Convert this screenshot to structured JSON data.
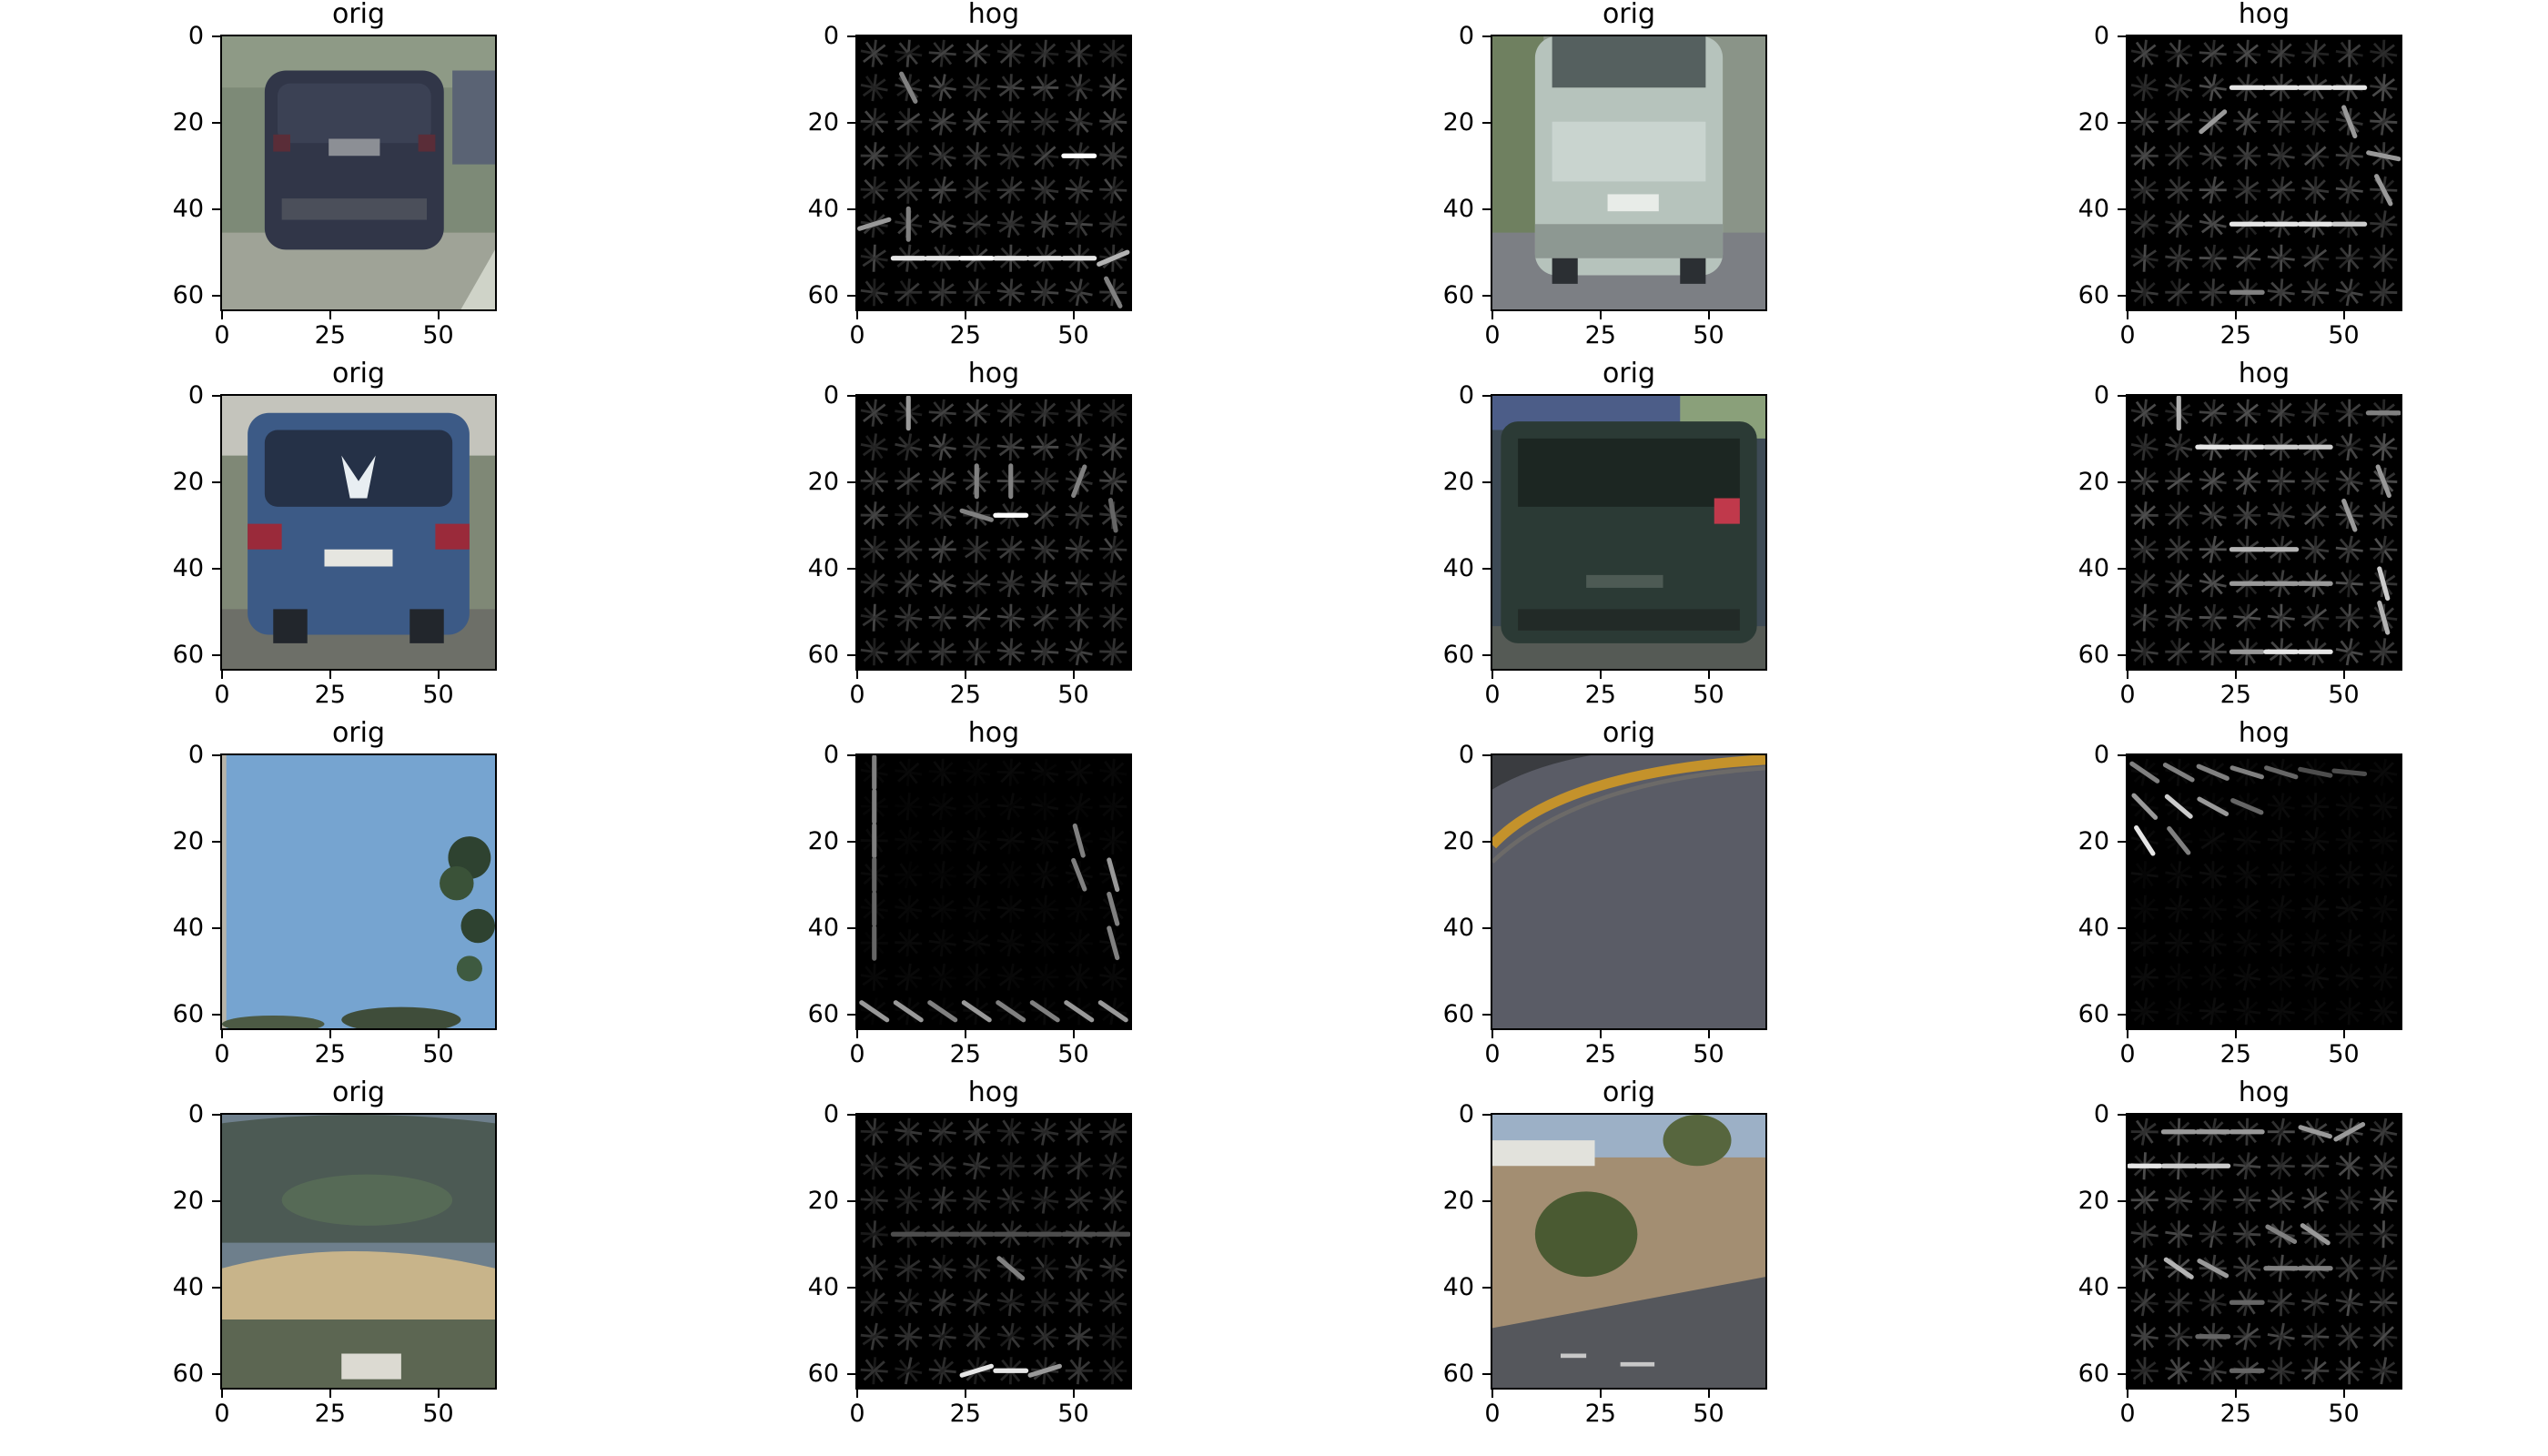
{
  "figure": {
    "panels": [
      {
        "title": "orig",
        "kind": "orig",
        "scene": "car-dark",
        "row": 0,
        "col": 0
      },
      {
        "title": "hog",
        "kind": "hog",
        "scene": "hog-car-1",
        "row": 0,
        "col": 1
      },
      {
        "title": "orig",
        "kind": "orig",
        "scene": "car-silver",
        "row": 0,
        "col": 2
      },
      {
        "title": "hog",
        "kind": "hog",
        "scene": "hog-car-2",
        "row": 0,
        "col": 3
      },
      {
        "title": "orig",
        "kind": "orig",
        "scene": "car-blue",
        "row": 1,
        "col": 0
      },
      {
        "title": "hog",
        "kind": "hog",
        "scene": "hog-car-3",
        "row": 1,
        "col": 1
      },
      {
        "title": "orig",
        "kind": "orig",
        "scene": "car-green",
        "row": 1,
        "col": 2
      },
      {
        "title": "hog",
        "kind": "hog",
        "scene": "hog-car-4",
        "row": 1,
        "col": 3
      },
      {
        "title": "orig",
        "kind": "orig",
        "scene": "sky-trees",
        "row": 2,
        "col": 0
      },
      {
        "title": "hog",
        "kind": "hog",
        "scene": "hog-sky",
        "row": 2,
        "col": 1
      },
      {
        "title": "orig",
        "kind": "orig",
        "scene": "road-curve",
        "row": 2,
        "col": 2
      },
      {
        "title": "hog",
        "kind": "hog",
        "scene": "hog-road",
        "row": 2,
        "col": 3
      },
      {
        "title": "orig",
        "kind": "orig",
        "scene": "hills",
        "row": 3,
        "col": 0
      },
      {
        "title": "hog",
        "kind": "hog",
        "scene": "hog-hills",
        "row": 3,
        "col": 1
      },
      {
        "title": "orig",
        "kind": "orig",
        "scene": "roadside-bush",
        "row": 3,
        "col": 2
      },
      {
        "title": "hog",
        "kind": "hog",
        "scene": "hog-bush",
        "row": 3,
        "col": 3
      }
    ],
    "yticks": [
      "0",
      "20",
      "40",
      "60"
    ],
    "xticks": [
      "0",
      "25",
      "50"
    ]
  }
}
